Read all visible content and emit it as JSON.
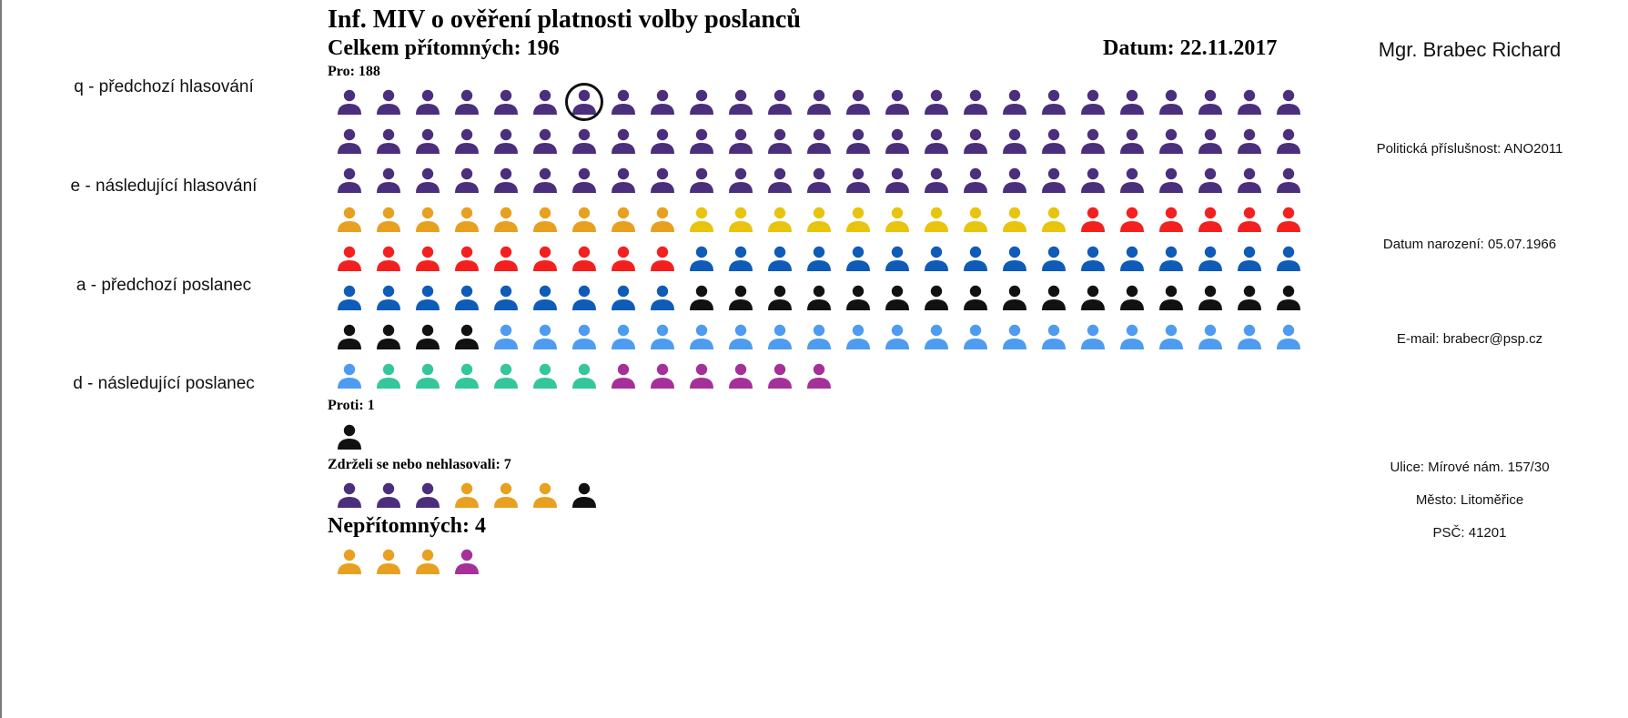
{
  "hints": [
    {
      "label": "q - předchozí hlasování"
    },
    {
      "label": "e - následující hlasování"
    },
    {
      "label": "a - předchozí poslanec"
    },
    {
      "label": "d - následující poslanec"
    }
  ],
  "header": {
    "title": "Inf. MIV o ověření platnosti volby poslanců",
    "present": "Celkem přítomných: 196",
    "date": "Datum: 22.11.2017"
  },
  "colors": {
    "purple": "#4b2e7c",
    "orange": "#e8a020",
    "yellow": "#e8c40e",
    "red": "#f42020",
    "blue": "#0e5bb8",
    "black": "#111111",
    "lightblue": "#4e9cf0",
    "teal": "#34c79b",
    "magenta": "#a5309a"
  },
  "groups": {
    "pro": {
      "label": "Pro: 188",
      "segments": [
        {
          "party": "purple",
          "count": 75
        },
        {
          "party": "orange",
          "count": 9
        },
        {
          "party": "yellow",
          "count": 10
        },
        {
          "party": "red",
          "count": 15
        },
        {
          "party": "blue",
          "count": 25
        },
        {
          "party": "black",
          "count": 20
        },
        {
          "party": "lightblue",
          "count": 22
        },
        {
          "party": "teal",
          "count": 6
        },
        {
          "party": "magenta",
          "count": 6
        }
      ],
      "selected_index": 6
    },
    "proti": {
      "label": "Proti: 1",
      "segments": [
        {
          "party": "black",
          "count": 1
        }
      ]
    },
    "zdrzeli": {
      "label": "Zdrželi se nebo nehlasovali: 7",
      "segments": [
        {
          "party": "purple",
          "count": 3
        },
        {
          "party": "orange",
          "count": 3
        },
        {
          "party": "black",
          "count": 1
        }
      ]
    },
    "absent": {
      "label": "Nepřítomných: 4",
      "segments": [
        {
          "party": "orange",
          "count": 3
        },
        {
          "party": "magenta",
          "count": 1
        }
      ]
    }
  },
  "deputy": {
    "name": "Mgr. Brabec Richard",
    "party": "Politická příslušnost: ANO2011",
    "birth": "Datum narození: 05.07.1966",
    "email": "E-mail: brabecr@psp.cz",
    "street": "Ulice: Mírové nám. 157/30",
    "city": "Město: Litoměřice",
    "zip": "PSČ: 41201"
  }
}
